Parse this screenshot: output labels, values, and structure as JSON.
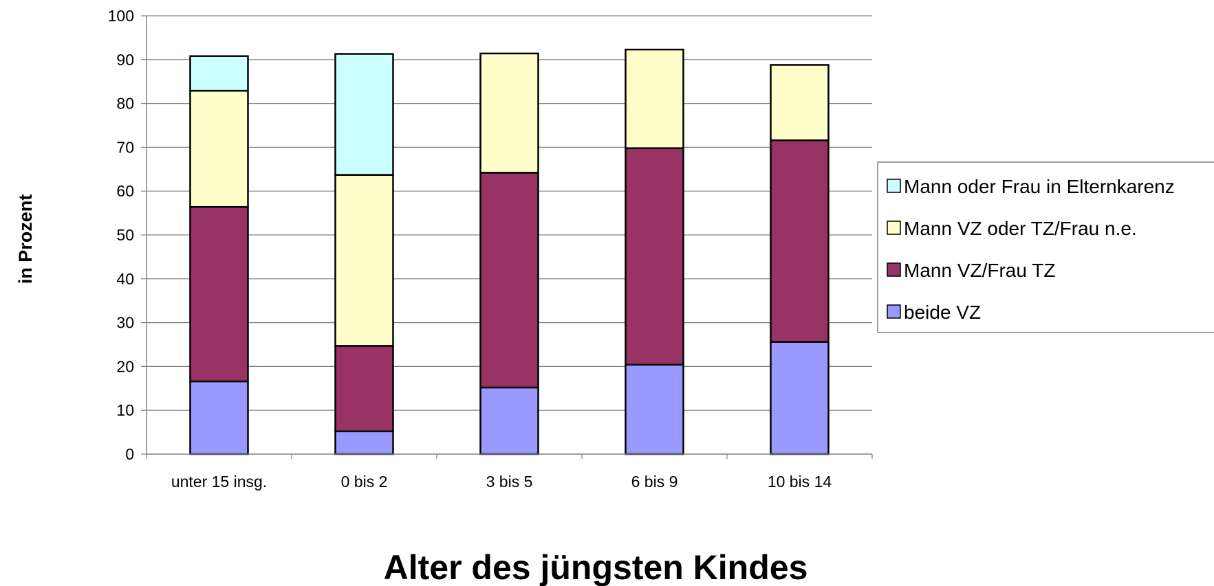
{
  "chart_data": {
    "type": "bar",
    "stacked": true,
    "title": "",
    "xlabel": "Alter des jüngsten Kindes",
    "ylabel": "in Prozent",
    "categories": [
      "unter 15 insg.",
      "0 bis 2",
      "3 bis 5",
      "6 bis 9",
      "10 bis 14"
    ],
    "ylim": [
      0,
      100
    ],
    "yticks": [
      0,
      10,
      20,
      30,
      40,
      50,
      60,
      70,
      80,
      90,
      100
    ],
    "grid": true,
    "legend_position": "right",
    "series": [
      {
        "name": "beide VZ",
        "color": "#9999FF",
        "values": [
          16.6,
          5.2,
          15.2,
          20.4,
          25.6
        ]
      },
      {
        "name": "Mann VZ/Frau TZ",
        "color": "#993366",
        "values": [
          39.8,
          19.5,
          49.0,
          49.4,
          46.0
        ]
      },
      {
        "name": "Mann VZ oder TZ/Frau n.e.",
        "color": "#FFFFCC",
        "values": [
          26.5,
          39.0,
          27.2,
          22.5,
          17.2
        ]
      },
      {
        "name": "Mann oder Frau in Elternkarenz",
        "color": "#CCFFFF",
        "values": [
          7.9,
          27.6,
          0,
          0,
          0
        ]
      }
    ]
  }
}
